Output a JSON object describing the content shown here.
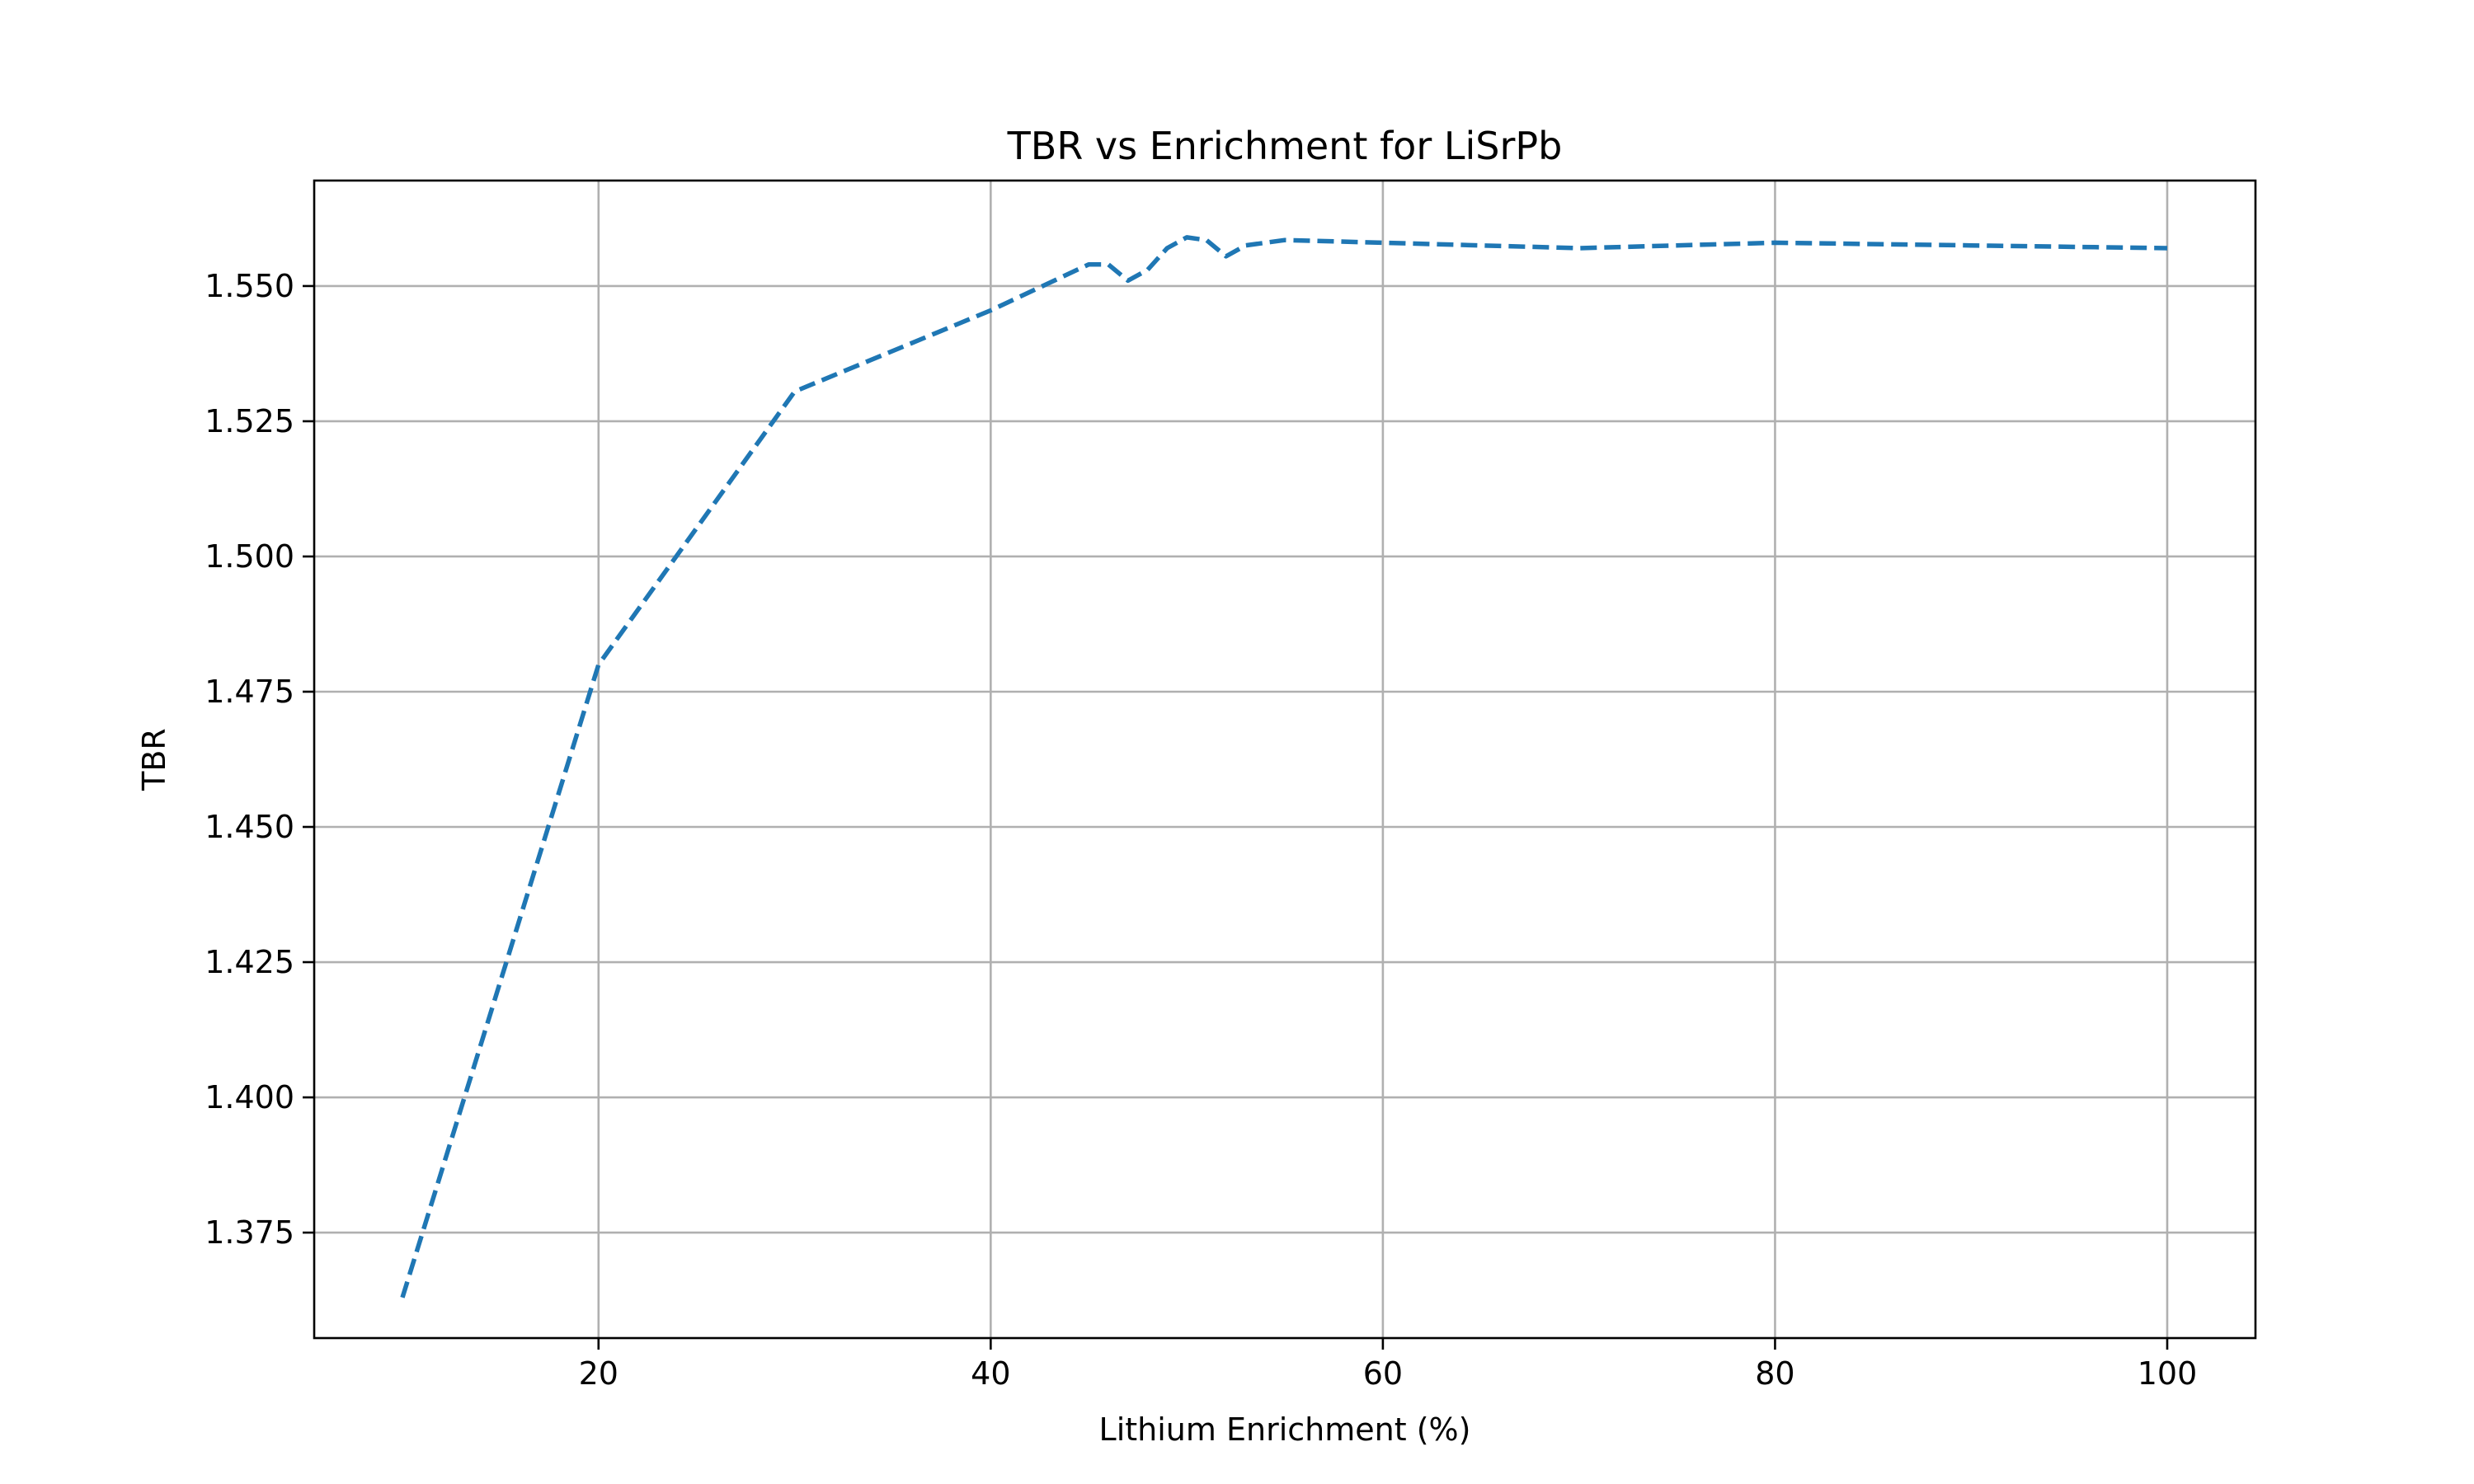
{
  "chart_data": {
    "type": "line",
    "title": "TBR vs Enrichment for LiSrPb",
    "xlabel": "Lithium Enrichment (%)",
    "ylabel": "TBR",
    "xlim": [
      5.5,
      104.5
    ],
    "ylim": [
      1.3555,
      1.5695
    ],
    "xticks": [
      20,
      40,
      60,
      80,
      100
    ],
    "xtick_labels": [
      "20",
      "40",
      "60",
      "80",
      "100"
    ],
    "yticks": [
      1.375,
      1.4,
      1.425,
      1.45,
      1.475,
      1.5,
      1.525,
      1.55
    ],
    "ytick_labels": [
      "1.375",
      "1.400",
      "1.425",
      "1.450",
      "1.475",
      "1.500",
      "1.525",
      "1.550"
    ],
    "grid": true,
    "legend": "none",
    "series": [
      {
        "color": "#1f77b4",
        "line_style": "dashed",
        "x": [
          10,
          20,
          30,
          40,
          45,
          46,
          47,
          48,
          49,
          50,
          51,
          52,
          53,
          55,
          60,
          70,
          80,
          90,
          100
        ],
        "y": [
          1.363,
          1.48,
          1.5305,
          1.5455,
          1.554,
          1.554,
          1.551,
          1.553,
          1.557,
          1.559,
          1.5585,
          1.5555,
          1.5575,
          1.5585,
          1.558,
          1.557,
          1.558,
          1.5575,
          1.557
        ]
      }
    ]
  }
}
